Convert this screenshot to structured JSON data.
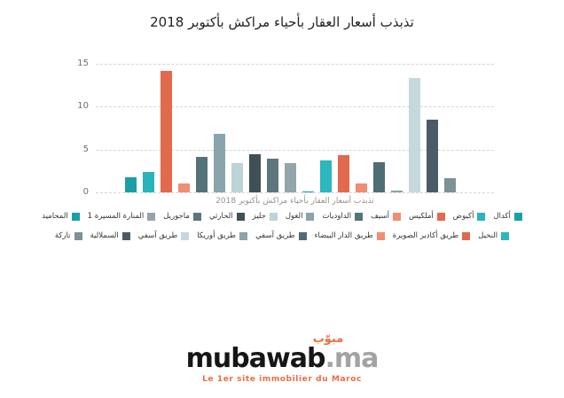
{
  "chart": {
    "title": "تذبذب أسعار العقار بأحياء مراكش بأكتوبر 2018",
    "xlabel": "تذبذب أسعار العقار بأحياء مراكش بأكتوبر 2018",
    "ytick_labels": [
      "15",
      "10",
      "5",
      "0"
    ]
  },
  "chart_data": {
    "type": "bar",
    "title": "تذبذب أسعار العقار بأحياء مراكش بأكتوبر 2018",
    "xlabel": "تذبذب أسعار العقار بأحياء مراكش بأكتوبر 2018",
    "ylabel": "",
    "ylim": [
      0,
      15
    ],
    "yticks": [
      0,
      5,
      10,
      15
    ],
    "grid": "dashed-horizontal",
    "legend_position": "bottom",
    "categories": [
      "أكدال",
      "أكيوض",
      "أملكيس",
      "أسيف",
      "الداوديات",
      "الغول",
      "جليز",
      "الحارثي",
      "ماجوريل",
      "المنارة المسيرة 1",
      "المحاميد",
      "النخيل",
      "طريق أكادير الصويرة",
      "طريق الدار البيضاء",
      "طريق آسفي",
      "طريق أوريكا",
      "طريق آسفي",
      "السملالية",
      "تاركة"
    ],
    "values": [
      1.8,
      2.4,
      14.2,
      1.0,
      4.1,
      6.8,
      3.4,
      4.5,
      3.9,
      3.4,
      0.15,
      3.7,
      4.3,
      1.0,
      3.5,
      0.25,
      13.3,
      8.5,
      1.7
    ],
    "colors": [
      "#1b9fa6",
      "#29b3ba",
      "#e2694e",
      "#f08d75",
      "#54737b",
      "#8aa4ab",
      "#bdd3d8",
      "#414f57",
      "#5d757c",
      "#93a5aa",
      "#1b9fa6",
      "#2bb7bd",
      "#e2694e",
      "#f08d75",
      "#4f6d75",
      "#8aa4ab",
      "#c5d9dd",
      "#4b5c66",
      "#7d9199"
    ]
  },
  "legend": {
    "rows": [
      [
        {
          "label": "المحاميد",
          "color": "#1b9fa6"
        },
        {
          "label": "المنارة المسيرة 1",
          "color": "#93a5aa"
        },
        {
          "label": "ماجوريل",
          "color": "#5d757c"
        },
        {
          "label": "الحارثي",
          "color": "#414f57"
        },
        {
          "label": "جليز",
          "color": "#bdd3d8"
        },
        {
          "label": "الغول",
          "color": "#8aa4ab"
        },
        {
          "label": "الداوديات",
          "color": "#54737b"
        },
        {
          "label": "أسيف",
          "color": "#f08d75"
        },
        {
          "label": "أملكيس",
          "color": "#e2694e"
        },
        {
          "label": "أكيوض",
          "color": "#29b3ba"
        },
        {
          "label": "أكدال",
          "color": "#1b9fa6"
        }
      ],
      [
        {
          "label": "تاركة",
          "color": "#7d9199"
        },
        {
          "label": "السملالية",
          "color": "#4b5c66"
        },
        {
          "label": "طريق آسفي",
          "color": "#c5d9dd"
        },
        {
          "label": "طريق أوريكا",
          "color": "#8aa4ab"
        },
        {
          "label": "طريق آسفي",
          "color": "#4f6d75"
        },
        {
          "label": "طريق الدار البيضاء",
          "color": "#f08d75"
        },
        {
          "label": "طريق أكادير الصويرة",
          "color": "#e2694e"
        },
        {
          "label": "النخيل",
          "color": "#2bb7bd"
        }
      ]
    ]
  },
  "footer": {
    "logo_arabic": "مبوّب",
    "logo_text": "mubawab",
    "logo_tld": ".ma",
    "tagline": "Le 1er site immobilier du Maroc",
    "brand_orange": "#ed6b42",
    "logo_black": "#161616",
    "tld_gray": "#a3a3a3"
  }
}
